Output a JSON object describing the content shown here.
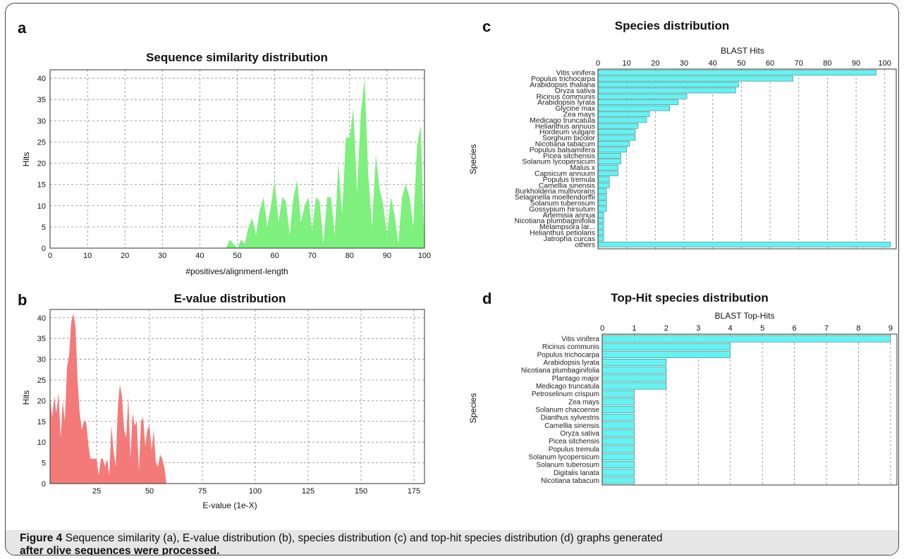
{
  "panel_labels": {
    "a": "a",
    "b": "b",
    "c": "c",
    "d": "d"
  },
  "caption": {
    "bold": "Figure 4",
    "line1": " Sequence similarity (a), E-value distribution (b), species distribution (c) and top-hit species distribution (d) graphs generated",
    "line2": "after olive sequences were processed."
  },
  "colors": {
    "green": "#7df07d",
    "red": "#f47a7a",
    "cyan": "#66f2f2"
  },
  "chart_data": [
    {
      "type": "area",
      "title": "Sequence similarity distribution",
      "xlabel": "#positives/alignment-length",
      "ylabel": "Hits",
      "xlim": [
        0,
        100
      ],
      "ylim": [
        0,
        42
      ],
      "xticks": [
        0,
        10,
        20,
        30,
        40,
        50,
        60,
        70,
        80,
        90,
        100
      ],
      "yticks": [
        0,
        5,
        10,
        15,
        20,
        25,
        30,
        35,
        40
      ],
      "grid": true,
      "color": "#7df07d",
      "x": [
        47,
        48,
        49,
        50,
        51,
        52,
        53,
        54,
        55,
        56,
        57,
        58,
        59,
        60,
        61,
        62,
        63,
        64,
        65,
        66,
        67,
        68,
        69,
        70,
        71,
        72,
        73,
        74,
        75,
        76,
        77,
        78,
        79,
        80,
        81,
        82,
        83,
        84,
        85,
        86,
        87,
        88,
        89,
        90,
        91,
        92,
        93,
        94,
        95,
        96,
        97,
        98,
        99,
        100
      ],
      "y": [
        0,
        2,
        1,
        0,
        2,
        1,
        5,
        7,
        3,
        9,
        12,
        5,
        10,
        16,
        6,
        12,
        11,
        3,
        12,
        16,
        6,
        10,
        12,
        4,
        12,
        11,
        1,
        12,
        12,
        3,
        20,
        8,
        26,
        26,
        33,
        13,
        32,
        40,
        17,
        5,
        22,
        14,
        10,
        3,
        12,
        8,
        1,
        12,
        15,
        12,
        5,
        24,
        29,
        0
      ]
    },
    {
      "type": "area",
      "title": "E-value distribution",
      "xlabel": "E-value (1e-X)",
      "ylabel": "Hits",
      "xlim": [
        3,
        180
      ],
      "ylim": [
        0,
        42
      ],
      "xticks": [
        25,
        50,
        75,
        100,
        125,
        150,
        175
      ],
      "yticks": [
        0,
        5,
        10,
        15,
        20,
        25,
        30,
        35,
        40
      ],
      "grid": true,
      "color": "#f47a7a",
      "x": [
        3,
        4,
        5,
        6,
        7,
        8,
        9,
        10,
        11,
        12,
        13,
        14,
        15,
        16,
        17,
        18,
        19,
        20,
        21,
        22,
        23,
        24,
        25,
        26,
        27,
        28,
        29,
        30,
        31,
        32,
        33,
        34,
        35,
        36,
        37,
        38,
        39,
        40,
        41,
        42,
        43,
        44,
        45,
        46,
        47,
        48,
        49,
        50,
        51,
        52,
        53,
        54,
        55,
        56,
        57,
        58
      ],
      "y": [
        21,
        16,
        21,
        17,
        22,
        11,
        20,
        15,
        28,
        31,
        39,
        41,
        38,
        25,
        17,
        13,
        15,
        15,
        10,
        6,
        6,
        6,
        6,
        2,
        6,
        6,
        4,
        6,
        2,
        14,
        8,
        4,
        18,
        24,
        21,
        13,
        11,
        21,
        6,
        17,
        14,
        15,
        3,
        15,
        16,
        9,
        13,
        14,
        8,
        13,
        5,
        4,
        7,
        6,
        4,
        0
      ]
    },
    {
      "type": "bar",
      "orientation": "horizontal",
      "title": "Species distribution",
      "xlabel": "BLAST Hits",
      "ylabel": "Species",
      "xlim": [
        0,
        104
      ],
      "xticks": [
        0,
        10,
        20,
        30,
        40,
        50,
        60,
        70,
        80,
        90,
        100
      ],
      "grid": true,
      "color": "#66f2f2",
      "categories": [
        "Vitis vinifera",
        "Populus trichocarpa",
        "Arabidopsis thaliana",
        "Oryza sativa",
        "Ricinus communis",
        "Arabidopsis lyrata",
        "Glycine max",
        "Zea mays",
        "Medicago truncatula",
        "Helianthus annuus",
        "Hordeum vulgare",
        "Sorghum bicolor",
        "Nicotiana tabacum",
        "Populus balsamifera",
        "Picea sitchensis",
        "Solanum lycopersicum",
        "Malus x",
        "Capsicum annuum",
        "Populus tremula",
        "Camellia sinensis",
        "Burkholderia multivorans",
        "Selaginella moellendorffii",
        "Solanum tuberosum",
        "Gossypium hirsutum",
        "Artemisia annua",
        "Nicotiana plumbaginifolia",
        "Melampsora lar...",
        "Helianthus petiolaris",
        "Jatropha curcas",
        "others"
      ],
      "values": [
        97,
        68,
        49,
        48,
        31,
        28,
        25,
        18,
        17,
        14,
        13,
        13,
        11,
        10,
        8,
        8,
        7,
        7,
        4,
        4,
        3,
        3,
        3,
        3,
        2,
        2,
        2,
        2,
        2,
        102
      ]
    },
    {
      "type": "bar",
      "orientation": "horizontal",
      "title": "Top-Hit species distribution",
      "xlabel": "BLAST Top-Hits",
      "ylabel": "Species",
      "xlim": [
        0,
        9.2
      ],
      "xticks": [
        0,
        1,
        2,
        3,
        4,
        5,
        6,
        7,
        8,
        9
      ],
      "grid": true,
      "color": "#66f2f2",
      "categories": [
        "Vitis vinifera",
        "Ricinus communis",
        "Populus trichocarpa",
        "Arabidopsis lyrata",
        "Nicotiana plumbaginifolia",
        "Plantago major",
        "Medicago truncatula",
        "Petroselinum crispum",
        "Zea mays",
        "Solanum chacoense",
        "Dianthus sylvestris",
        "Camellia sinensis",
        "Oryza sativa",
        "Picea sitchensis",
        "Populus tremula",
        "Solanum lycopersicum",
        "Solanum tuberosum",
        "Digitalis lanata",
        "Nicotiana tabacum"
      ],
      "values": [
        9,
        4,
        4,
        2,
        2,
        2,
        2,
        1,
        1,
        1,
        1,
        1,
        1,
        1,
        1,
        1,
        1,
        1,
        1
      ]
    }
  ]
}
